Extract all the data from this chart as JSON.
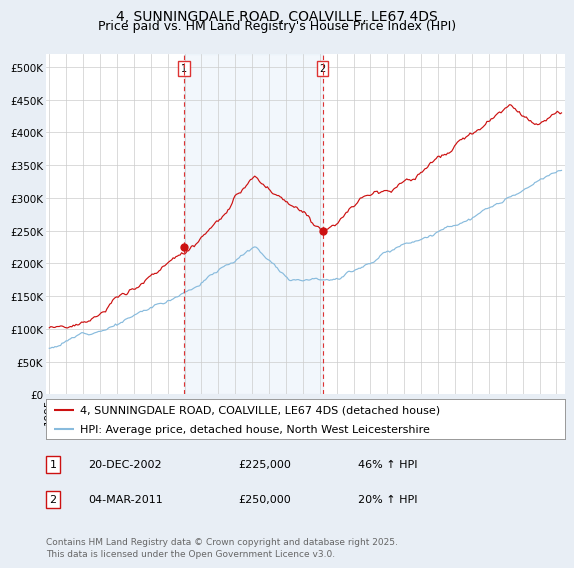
{
  "title": "4, SUNNINGDALE ROAD, COALVILLE, LE67 4DS",
  "subtitle": "Price paid vs. HM Land Registry's House Price Index (HPI)",
  "ylabel_ticks": [
    "£0",
    "£50K",
    "£100K",
    "£150K",
    "£200K",
    "£250K",
    "£300K",
    "£350K",
    "£400K",
    "£450K",
    "£500K"
  ],
  "ytick_vals": [
    0,
    50000,
    100000,
    150000,
    200000,
    250000,
    300000,
    350000,
    400000,
    450000,
    500000
  ],
  "ylim": [
    0,
    520000
  ],
  "xlim_start": 1994.8,
  "xlim_end": 2025.5,
  "bg_color": "#e8eef5",
  "plot_bg": "#ffffff",
  "red_line_color": "#cc1111",
  "blue_line_color": "#88bbdd",
  "vline_color": "#dd3333",
  "sale1_x": 2002.97,
  "sale1_y": 225000,
  "sale2_x": 2011.17,
  "sale2_y": 250000,
  "legend_red": "4, SUNNINGDALE ROAD, COALVILLE, LE67 4DS (detached house)",
  "legend_blue": "HPI: Average price, detached house, North West Leicestershire",
  "table_row1": [
    "1",
    "20-DEC-2002",
    "£225,000",
    "46% ↑ HPI"
  ],
  "table_row2": [
    "2",
    "04-MAR-2011",
    "£250,000",
    "20% ↑ HPI"
  ],
  "footer": "Contains HM Land Registry data © Crown copyright and database right 2025.\nThis data is licensed under the Open Government Licence v3.0.",
  "title_fontsize": 10,
  "subtitle_fontsize": 9,
  "tick_fontsize": 7.5,
  "legend_fontsize": 8,
  "table_fontsize": 8,
  "footer_fontsize": 6.5
}
